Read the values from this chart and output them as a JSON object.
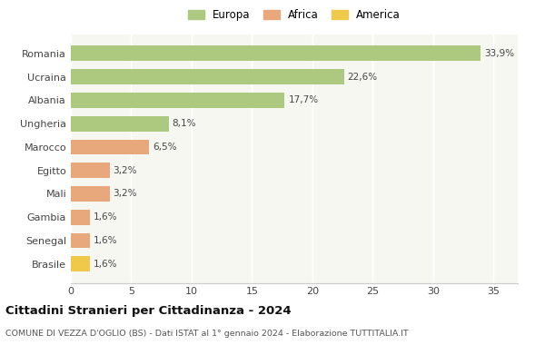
{
  "categories": [
    "Romania",
    "Ucraina",
    "Albania",
    "Ungheria",
    "Marocco",
    "Egitto",
    "Mali",
    "Gambia",
    "Senegal",
    "Brasile"
  ],
  "values": [
    33.9,
    22.6,
    17.7,
    8.1,
    6.5,
    3.2,
    3.2,
    1.6,
    1.6,
    1.6
  ],
  "labels": [
    "33,9%",
    "22,6%",
    "17,7%",
    "8,1%",
    "6,5%",
    "3,2%",
    "3,2%",
    "1,6%",
    "1,6%",
    "1,6%"
  ],
  "colors": [
    "#adc97f",
    "#adc97f",
    "#adc97f",
    "#adc97f",
    "#e8a87c",
    "#e8a87c",
    "#e8a87c",
    "#e8a87c",
    "#e8a87c",
    "#f0c84a"
  ],
  "legend_labels": [
    "Europa",
    "Africa",
    "America"
  ],
  "legend_colors": [
    "#adc97f",
    "#e8a87c",
    "#f0c84a"
  ],
  "title": "Cittadini Stranieri per Cittadinanza - 2024",
  "subtitle": "COMUNE DI VEZZA D'OGLIO (BS) - Dati ISTAT al 1° gennaio 2024 - Elaborazione TUTTITALIA.IT",
  "xlim": [
    0,
    37
  ],
  "xticks": [
    0,
    5,
    10,
    15,
    20,
    25,
    30,
    35
  ],
  "bg_color": "#ffffff",
  "plot_bg_color": "#f7f7f2"
}
